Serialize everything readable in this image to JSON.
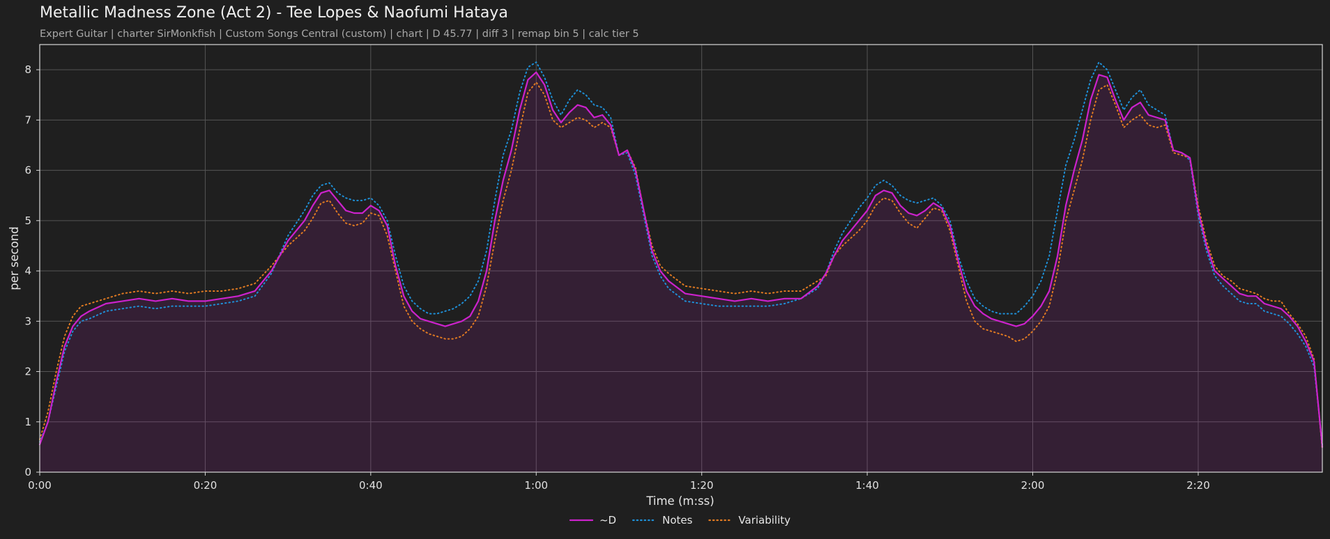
{
  "chart_data": {
    "type": "line",
    "title": "Metallic Madness Zone (Act 2) - Tee Lopes & Naofumi Hataya",
    "subtitle": "Expert Guitar  |  charter SirMonkfish  |  Custom Songs Central (custom)  |  chart  |  D 45.77  |  diff 3  |  remap bin 5  |  calc tier 5",
    "xlabel": "Time (m:ss)",
    "ylabel": "per second",
    "xlim": [
      0,
      155
    ],
    "ylim": [
      0,
      8.5
    ],
    "x_tick_values": [
      0,
      20,
      40,
      60,
      80,
      100,
      120,
      140
    ],
    "x_tick_labels": [
      "0:00",
      "0:20",
      "0:40",
      "1:00",
      "1:20",
      "1:40",
      "2:00",
      "2:20"
    ],
    "y_tick_values": [
      0,
      1,
      2,
      3,
      4,
      5,
      6,
      7,
      8
    ],
    "y_tick_labels": [
      "0",
      "1",
      "2",
      "3",
      "4",
      "5",
      "6",
      "7",
      "8"
    ],
    "grid": true,
    "legend_position": "bottom-center",
    "x": [
      0,
      1,
      2,
      3,
      4,
      5,
      6,
      8,
      10,
      12,
      14,
      16,
      18,
      20,
      22,
      24,
      26,
      28,
      30,
      32,
      33,
      34,
      35,
      36,
      37,
      38,
      39,
      40,
      41,
      42,
      43,
      44,
      45,
      46,
      47,
      48,
      49,
      50,
      51,
      52,
      53,
      54,
      55,
      56,
      57,
      58,
      59,
      60,
      61,
      62,
      63,
      64,
      65,
      66,
      67,
      68,
      69,
      70,
      71,
      72,
      73,
      74,
      75,
      76,
      78,
      80,
      82,
      84,
      86,
      88,
      90,
      92,
      94,
      95,
      96,
      97,
      98,
      99,
      100,
      101,
      102,
      103,
      104,
      105,
      106,
      107,
      108,
      109,
      110,
      111,
      112,
      113,
      114,
      115,
      116,
      117,
      118,
      119,
      120,
      121,
      122,
      123,
      124,
      125,
      126,
      127,
      128,
      129,
      130,
      131,
      132,
      133,
      134,
      135,
      136,
      137,
      138,
      139,
      140,
      141,
      142,
      143,
      144,
      145,
      146,
      147,
      148,
      149,
      150,
      151,
      152,
      153,
      154,
      155
    ],
    "series": [
      {
        "name": "~D",
        "color": "#cc22cc",
        "style": "solid",
        "values": [
          0.55,
          1.0,
          1.8,
          2.5,
          2.9,
          3.1,
          3.2,
          3.35,
          3.4,
          3.45,
          3.4,
          3.45,
          3.4,
          3.4,
          3.45,
          3.5,
          3.6,
          4.0,
          4.6,
          5.0,
          5.3,
          5.55,
          5.6,
          5.4,
          5.2,
          5.15,
          5.15,
          5.3,
          5.2,
          4.9,
          4.1,
          3.5,
          3.2,
          3.05,
          3.0,
          2.95,
          2.9,
          2.95,
          3.0,
          3.1,
          3.4,
          4.0,
          5.0,
          5.8,
          6.4,
          7.2,
          7.8,
          7.95,
          7.7,
          7.2,
          6.95,
          7.15,
          7.3,
          7.25,
          7.05,
          7.1,
          6.9,
          6.3,
          6.4,
          6.0,
          5.2,
          4.4,
          4.0,
          3.8,
          3.55,
          3.5,
          3.45,
          3.4,
          3.45,
          3.4,
          3.45,
          3.45,
          3.7,
          3.95,
          4.3,
          4.6,
          4.8,
          5.0,
          5.2,
          5.5,
          5.6,
          5.55,
          5.3,
          5.15,
          5.1,
          5.2,
          5.35,
          5.25,
          4.9,
          4.2,
          3.6,
          3.3,
          3.15,
          3.05,
          3.0,
          2.95,
          2.9,
          2.95,
          3.1,
          3.3,
          3.6,
          4.3,
          5.3,
          6.0,
          6.6,
          7.4,
          7.9,
          7.85,
          7.4,
          7.0,
          7.25,
          7.35,
          7.1,
          7.05,
          7.0,
          6.4,
          6.35,
          6.25,
          5.2,
          4.5,
          4.0,
          3.85,
          3.7,
          3.55,
          3.5,
          3.5,
          3.35,
          3.3,
          3.25,
          3.1,
          2.9,
          2.6,
          2.2,
          0.5
        ]
      },
      {
        "name": "Notes",
        "color": "#1f8fd6",
        "style": "dotted",
        "values": [
          0.6,
          1.0,
          1.7,
          2.4,
          2.8,
          3.0,
          3.05,
          3.2,
          3.25,
          3.3,
          3.25,
          3.3,
          3.3,
          3.3,
          3.35,
          3.4,
          3.5,
          3.95,
          4.7,
          5.2,
          5.5,
          5.7,
          5.75,
          5.55,
          5.45,
          5.4,
          5.4,
          5.45,
          5.3,
          5.0,
          4.3,
          3.7,
          3.4,
          3.25,
          3.15,
          3.15,
          3.2,
          3.25,
          3.35,
          3.5,
          3.8,
          4.4,
          5.4,
          6.3,
          6.8,
          7.55,
          8.05,
          8.15,
          7.85,
          7.4,
          7.1,
          7.4,
          7.6,
          7.5,
          7.3,
          7.25,
          7.05,
          6.3,
          6.35,
          5.9,
          5.1,
          4.3,
          3.9,
          3.65,
          3.4,
          3.35,
          3.3,
          3.3,
          3.3,
          3.3,
          3.35,
          3.45,
          3.65,
          3.95,
          4.4,
          4.75,
          5.0,
          5.25,
          5.45,
          5.7,
          5.8,
          5.7,
          5.5,
          5.4,
          5.35,
          5.4,
          5.45,
          5.3,
          5.0,
          4.3,
          3.8,
          3.45,
          3.3,
          3.2,
          3.15,
          3.15,
          3.15,
          3.3,
          3.5,
          3.8,
          4.3,
          5.2,
          6.1,
          6.6,
          7.2,
          7.8,
          8.15,
          8.0,
          7.6,
          7.2,
          7.45,
          7.6,
          7.3,
          7.2,
          7.1,
          6.4,
          6.35,
          6.2,
          5.1,
          4.4,
          3.9,
          3.7,
          3.55,
          3.4,
          3.35,
          3.35,
          3.2,
          3.15,
          3.1,
          2.95,
          2.75,
          2.5,
          2.1,
          0.55
        ]
      },
      {
        "name": "Variability",
        "color": "#e07a22",
        "style": "dotted",
        "values": [
          0.65,
          1.2,
          2.0,
          2.7,
          3.1,
          3.3,
          3.35,
          3.45,
          3.55,
          3.6,
          3.55,
          3.6,
          3.55,
          3.6,
          3.6,
          3.65,
          3.75,
          4.1,
          4.5,
          4.8,
          5.05,
          5.35,
          5.4,
          5.15,
          4.95,
          4.9,
          4.95,
          5.15,
          5.1,
          4.7,
          4.0,
          3.3,
          3.0,
          2.85,
          2.75,
          2.7,
          2.65,
          2.65,
          2.7,
          2.85,
          3.1,
          3.7,
          4.6,
          5.4,
          6.0,
          6.8,
          7.55,
          7.75,
          7.5,
          7.0,
          6.85,
          6.95,
          7.05,
          7.0,
          6.85,
          6.95,
          6.85,
          6.3,
          6.4,
          6.05,
          5.2,
          4.5,
          4.1,
          3.95,
          3.7,
          3.65,
          3.6,
          3.55,
          3.6,
          3.55,
          3.6,
          3.6,
          3.8,
          3.9,
          4.3,
          4.5,
          4.65,
          4.8,
          5.0,
          5.3,
          5.45,
          5.4,
          5.15,
          4.95,
          4.85,
          5.05,
          5.25,
          5.2,
          4.8,
          4.1,
          3.4,
          3.0,
          2.85,
          2.8,
          2.75,
          2.7,
          2.6,
          2.65,
          2.8,
          3.0,
          3.3,
          4.0,
          5.0,
          5.6,
          6.2,
          7.0,
          7.6,
          7.7,
          7.3,
          6.85,
          7.0,
          7.1,
          6.9,
          6.85,
          6.9,
          6.35,
          6.3,
          6.25,
          5.3,
          4.6,
          4.1,
          3.9,
          3.8,
          3.65,
          3.6,
          3.55,
          3.45,
          3.4,
          3.4,
          3.15,
          2.95,
          2.7,
          2.25,
          0.45
        ]
      }
    ]
  }
}
